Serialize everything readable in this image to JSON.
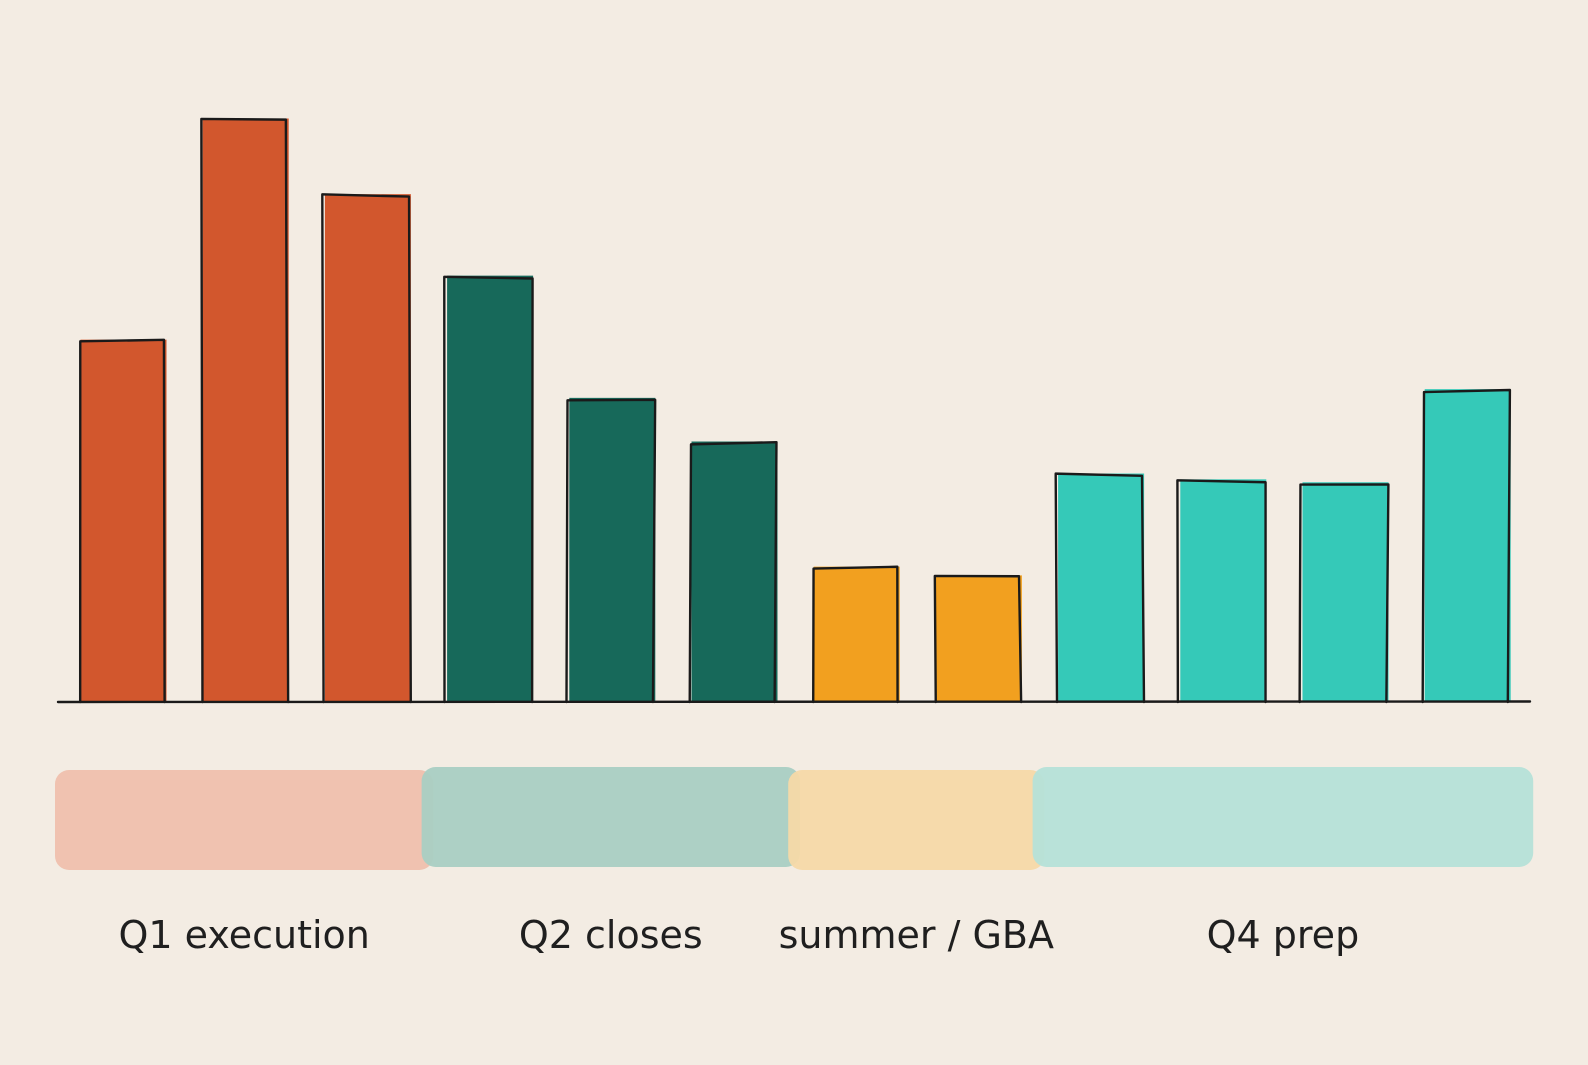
{
  "chart_data": {
    "type": "bar",
    "title": "",
    "xlabel": "",
    "ylabel": "",
    "ylim": [
      0,
      100
    ],
    "grid": false,
    "values": [
      62,
      100,
      87,
      73,
      52,
      44.5,
      23,
      21.5,
      39,
      38,
      37.5,
      53.5
    ],
    "groups": [
      {
        "label": "Q1 execution",
        "bar_count": 3,
        "color": "#d2572d",
        "band_color": "#efc0ad"
      },
      {
        "label": "Q2 closes",
        "bar_count": 3,
        "color": "#17695a",
        "band_color": "#a9cfc3"
      },
      {
        "label": "summer / GBA",
        "bar_count": 2,
        "color": "#f2a01f",
        "band_color": "#f5d9a8"
      },
      {
        "label": "Q4 prep",
        "bar_count": 4,
        "color": "#35c9b8",
        "band_color": "#b5e2d8"
      }
    ],
    "baseline_color": "#1a1a1a",
    "outline_color": "#1a1a1a",
    "background_color": "#f3ece3"
  }
}
